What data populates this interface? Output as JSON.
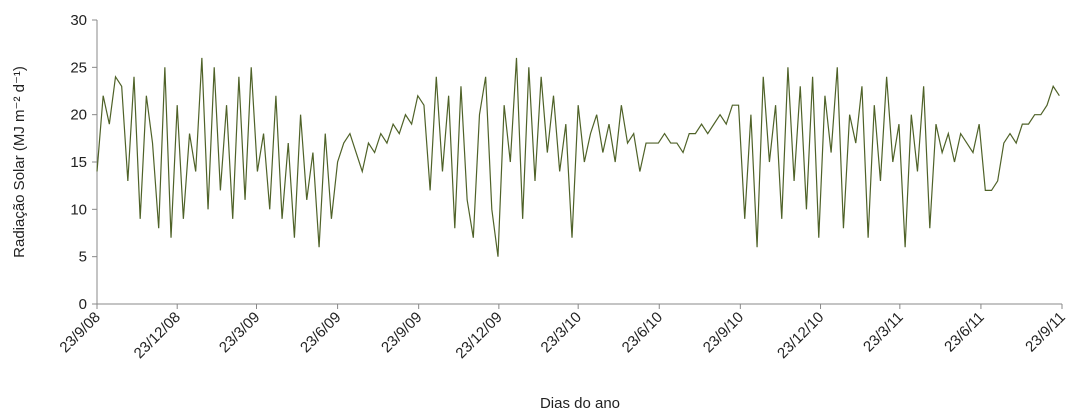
{
  "chart_data": {
    "type": "line",
    "x_label": "Dias do ano",
    "y_label": "Radiação Solar (MJ m⁻² d⁻¹)",
    "xlim": [
      0,
      1095
    ],
    "xticks": [
      {
        "value": 0,
        "label": "23/9/08"
      },
      {
        "value": 91,
        "label": "23/12/08"
      },
      {
        "value": 181,
        "label": "23/3/09"
      },
      {
        "value": 273,
        "label": "23/6/09"
      },
      {
        "value": 365,
        "label": "23/9/09"
      },
      {
        "value": 456,
        "label": "23/12/09"
      },
      {
        "value": 546,
        "label": "23/3/10"
      },
      {
        "value": 638,
        "label": "23/6/10"
      },
      {
        "value": 730,
        "label": "23/9/10"
      },
      {
        "value": 821,
        "label": "23/12/10"
      },
      {
        "value": 911,
        "label": "23/3/11"
      },
      {
        "value": 1003,
        "label": "23/6/11"
      },
      {
        "value": 1095,
        "label": "23/9/11"
      }
    ],
    "ylim": [
      0,
      30
    ],
    "yticks": [
      0,
      5,
      10,
      15,
      20,
      25,
      30
    ],
    "grid": false,
    "x": [
      0,
      7,
      14,
      21,
      28,
      35,
      42,
      49,
      56,
      63,
      70,
      77,
      84,
      91,
      98,
      105,
      112,
      119,
      126,
      133,
      140,
      147,
      154,
      161,
      168,
      175,
      182,
      189,
      196,
      203,
      210,
      217,
      224,
      231,
      238,
      245,
      252,
      259,
      266,
      273,
      280,
      287,
      294,
      301,
      308,
      315,
      322,
      329,
      336,
      343,
      350,
      357,
      364,
      371,
      378,
      385,
      392,
      399,
      406,
      413,
      420,
      427,
      434,
      441,
      448,
      455,
      462,
      469,
      476,
      483,
      490,
      497,
      504,
      511,
      518,
      525,
      532,
      539,
      546,
      553,
      560,
      567,
      574,
      581,
      588,
      595,
      602,
      609,
      616,
      623,
      630,
      637,
      644,
      651,
      658,
      665,
      672,
      679,
      686,
      693,
      700,
      707,
      714,
      721,
      728,
      735,
      742,
      749,
      756,
      763,
      770,
      777,
      784,
      791,
      798,
      805,
      812,
      819,
      826,
      833,
      840,
      847,
      854,
      861,
      868,
      875,
      882,
      889,
      896,
      903,
      910,
      917,
      924,
      931,
      938,
      945,
      952,
      959,
      966,
      973,
      980,
      987,
      994,
      1001,
      1008,
      1015,
      1022,
      1029,
      1036,
      1043,
      1050,
      1057,
      1064,
      1071,
      1078,
      1085,
      1092
    ],
    "series": [
      {
        "color": "#4f6228",
        "values": [
          14,
          22,
          19,
          24,
          23,
          13,
          24,
          9,
          22,
          17,
          8,
          25,
          7,
          21,
          9,
          18,
          14,
          26,
          10,
          25,
          12,
          21,
          9,
          24,
          11,
          25,
          14,
          18,
          10,
          22,
          9,
          17,
          7,
          20,
          11,
          16,
          6,
          18,
          9,
          15,
          17,
          18,
          16,
          14,
          17,
          16,
          18,
          17,
          19,
          18,
          20,
          19,
          22,
          21,
          12,
          24,
          14,
          22,
          8,
          23,
          11,
          7,
          20,
          24,
          10,
          5,
          21,
          15,
          26,
          9,
          25,
          13,
          24,
          16,
          22,
          14,
          19,
          7,
          21,
          15,
          18,
          20,
          16,
          19,
          15,
          21,
          17,
          18,
          14,
          17,
          17,
          17,
          18,
          17,
          17,
          16,
          18,
          18,
          19,
          18,
          19,
          20,
          19,
          21,
          21,
          9,
          20,
          6,
          24,
          15,
          21,
          9,
          25,
          13,
          23,
          10,
          24,
          7,
          22,
          16,
          25,
          8,
          20,
          17,
          23,
          7,
          21,
          13,
          24,
          15,
          19,
          6,
          20,
          14,
          23,
          8,
          19,
          16,
          18,
          15,
          18,
          17,
          16,
          19,
          12,
          12,
          13,
          17,
          18,
          17,
          19,
          19,
          20,
          20,
          21,
          23,
          22
        ]
      }
    ]
  }
}
